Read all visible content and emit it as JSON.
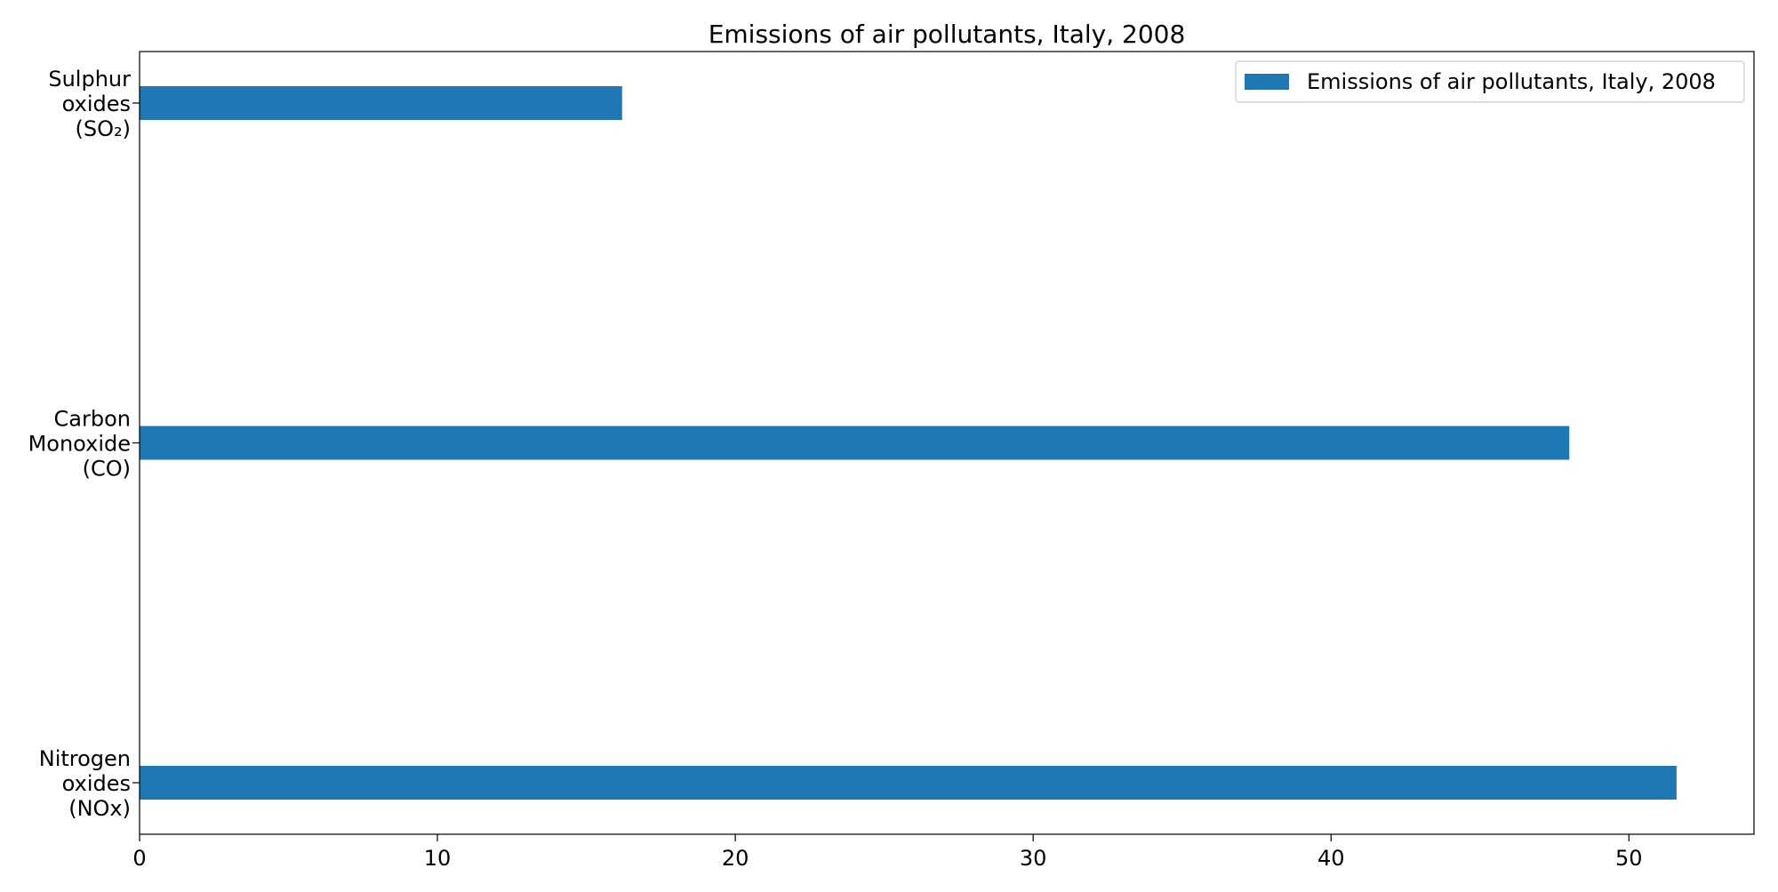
{
  "chart_data": {
    "type": "bar",
    "orientation": "horizontal",
    "title": "Emissions of air pollutants, Italy, 2008",
    "xlabel": "",
    "ylabel": "",
    "categories": [
      [
        "Sulphur",
        "oxides",
        "(SO₂)"
      ],
      [
        "Carbon",
        "Monoxide",
        "(CO)"
      ],
      [
        "Nitrogen",
        "oxides",
        "(NOx)"
      ]
    ],
    "series": [
      {
        "name": "Emissions of air pollutants, Italy, 2008",
        "values": [
          16.2,
          48.0,
          51.6
        ],
        "color": "#1f77b4"
      }
    ],
    "xlim": [
      0,
      54.2
    ],
    "xticks": [
      0,
      10,
      20,
      30,
      40,
      50
    ],
    "grid": false,
    "legend_position": "top-right"
  }
}
